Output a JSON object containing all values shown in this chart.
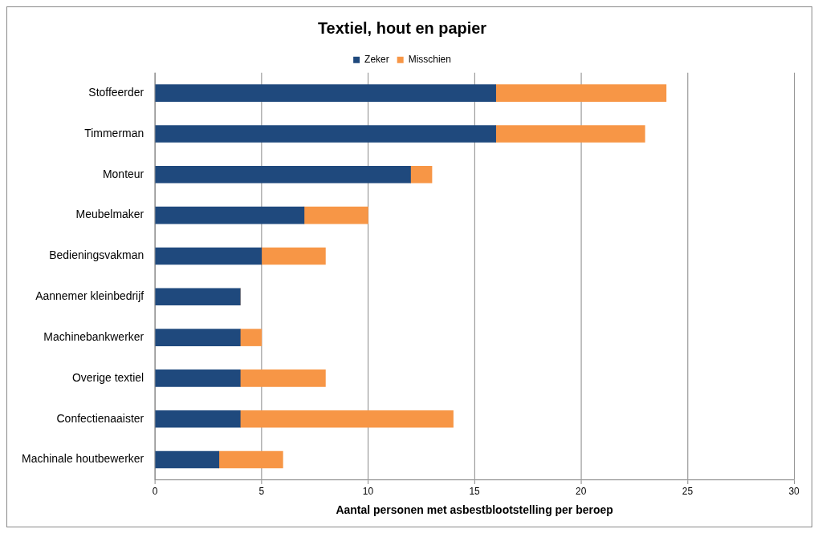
{
  "chart_data": {
    "type": "bar",
    "title": "Textiel, hout en papier",
    "orientation": "horizontal",
    "stacked": true,
    "categories": [
      "Stoffeerder",
      "Timmerman",
      "Monteur",
      "Meubelmaker",
      "Bedieningsvakman",
      "Aannemer kleinbedrijf",
      "Machinebankwerker",
      "Overige textiel",
      "Confectienaaister",
      "Machinale houtbewerker"
    ],
    "series": [
      {
        "name": "Zeker",
        "color": "#1f497d",
        "values": [
          16,
          16,
          12,
          7,
          5,
          4,
          4,
          4,
          4,
          3
        ]
      },
      {
        "name": "Misschien",
        "color": "#f79646",
        "values": [
          8,
          7,
          1,
          3,
          3,
          0,
          1,
          4,
          10,
          3
        ]
      }
    ],
    "xlabel": "Aantal personen met asbestblootstelling per beroep",
    "xlim": [
      0,
      30
    ],
    "xticks": [
      0,
      5,
      10,
      15,
      20,
      25,
      30
    ],
    "grid": "x",
    "legend": "top"
  }
}
